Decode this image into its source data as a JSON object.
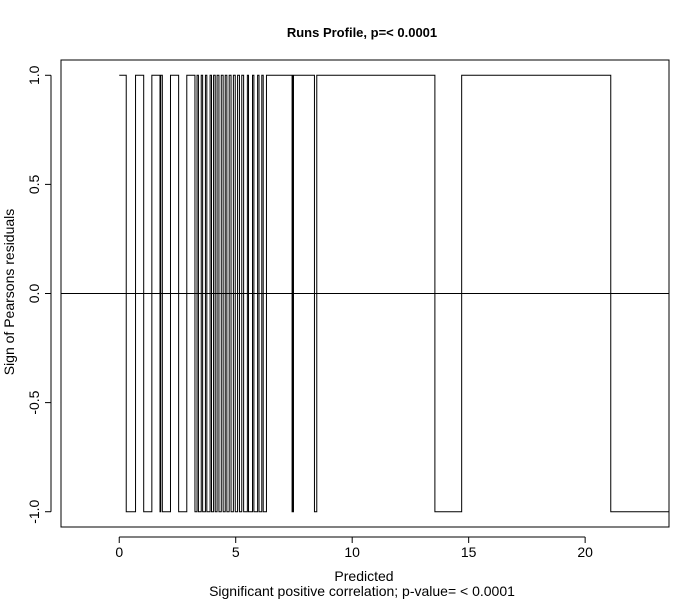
{
  "chart_data": {
    "type": "line",
    "title": "Runs Profile, p=< 0.0001",
    "xlabel": "Predicted",
    "ylabel": "Sign of Pearsons residuals",
    "subtitle": "Significant positive correlation; p-value= < 0.0001",
    "xlim": [
      -2.5,
      23.6
    ],
    "ylim": [
      -1.07,
      1.07
    ],
    "x_ticks": [
      "0",
      "5",
      "10",
      "15",
      "20"
    ],
    "y_ticks": [
      "-1.0",
      "-0.5",
      "0.0",
      "0.5",
      "1.0"
    ],
    "reference_line_y": 0,
    "series": [
      {
        "x": [
          0.0,
          0.3,
          0.7,
          1.05,
          1.4,
          1.75,
          1.78,
          1.85,
          2.2,
          2.55,
          2.9,
          3.25,
          3.34,
          3.4,
          3.52,
          3.58,
          3.7,
          3.76,
          3.9,
          3.96,
          4.05,
          4.12,
          4.2,
          4.28,
          4.38,
          4.46,
          4.55,
          4.62,
          4.72,
          4.8,
          4.9,
          4.98,
          5.08,
          5.16,
          5.26,
          5.34,
          5.5,
          5.55,
          5.72,
          5.78,
          5.94,
          6.0,
          6.12,
          6.18,
          6.32,
          7.42,
          7.44,
          7.46,
          7.48,
          8.38,
          8.48,
          13.55,
          14.7,
          21.1,
          23.6
        ],
        "y": [
          1,
          -1,
          1,
          -1,
          1,
          -1,
          1,
          -1,
          1,
          -1,
          1,
          -1,
          1,
          -1,
          1,
          -1,
          1,
          -1,
          1,
          -1,
          1,
          -1,
          1,
          -1,
          1,
          -1,
          1,
          -1,
          1,
          -1,
          1,
          -1,
          1,
          -1,
          1,
          -1,
          1,
          -1,
          1,
          -1,
          1,
          -1,
          1,
          -1,
          1,
          -1,
          1,
          -1,
          1,
          -1,
          1,
          -1,
          1,
          -1,
          1
        ]
      }
    ]
  }
}
